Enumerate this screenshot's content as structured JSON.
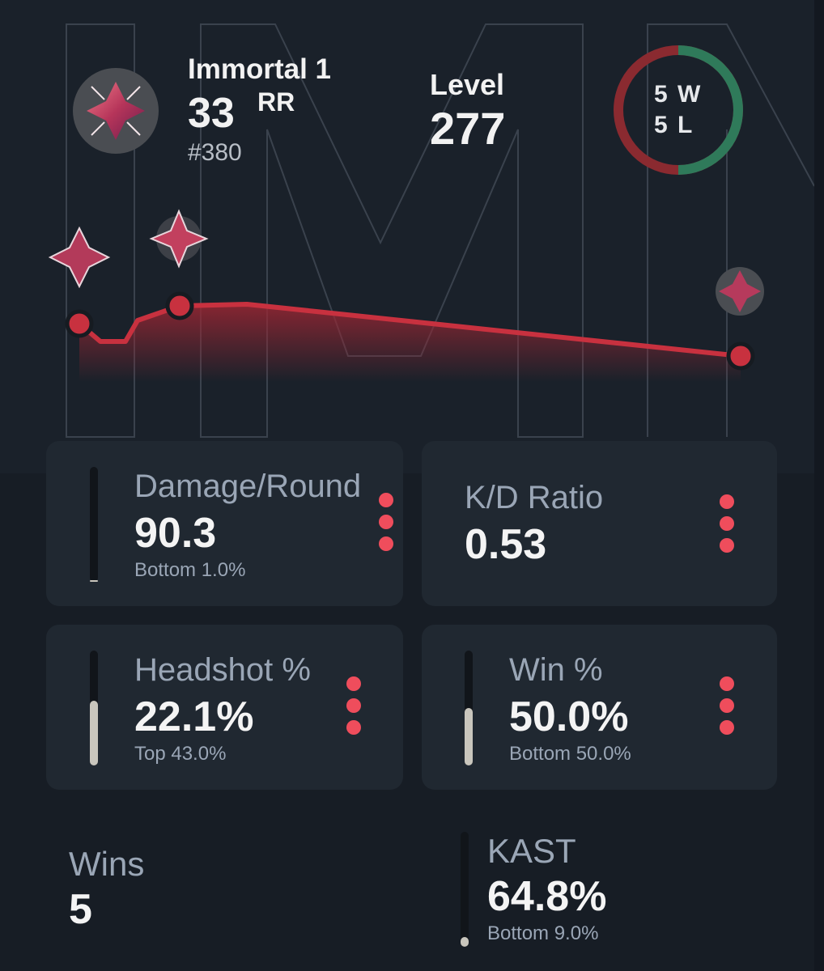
{
  "rank": {
    "name": "Immortal 1",
    "rr": "33",
    "rr_unit": "RR",
    "position": "#380",
    "icon": "immortal-rank-icon"
  },
  "level": {
    "label": "Level",
    "value": "277"
  },
  "record": {
    "wins": "5 W",
    "losses": "5 L",
    "win_color": "#2f7a5a",
    "loss_color": "#8a2a30"
  },
  "chart_data": {
    "type": "area",
    "description_points_rr": [
      0.78,
      0.7,
      0.7,
      0.84,
      0.86,
      0.87,
      0.87,
      0.76,
      0.6
    ],
    "markers": [
      0,
      4,
      8
    ],
    "line_color": "#c8313f"
  },
  "stats": [
    {
      "label": "Damage/Round",
      "value": "90.3",
      "sub": "Bottom 1.0%",
      "percentile": 0.01
    },
    {
      "label": "K/D Ratio",
      "value": "0.53",
      "sub": "",
      "percentile": null
    },
    {
      "label": "Headshot %",
      "value": "22.1%",
      "sub": "Top 43.0%",
      "percentile": 0.57
    },
    {
      "label": "Win %",
      "value": "50.0%",
      "sub": "Bottom 50.0%",
      "percentile": 0.5
    }
  ],
  "bottom": {
    "wins_label": "Wins",
    "wins_value": "5",
    "kast_label": "KAST",
    "kast_value": "64.8%",
    "kast_sub": "Bottom 9.0%",
    "kast_percentile": 0.09
  },
  "colors": {
    "accent": "#ef4d5c",
    "card": "#202831",
    "background": "#171d25"
  }
}
